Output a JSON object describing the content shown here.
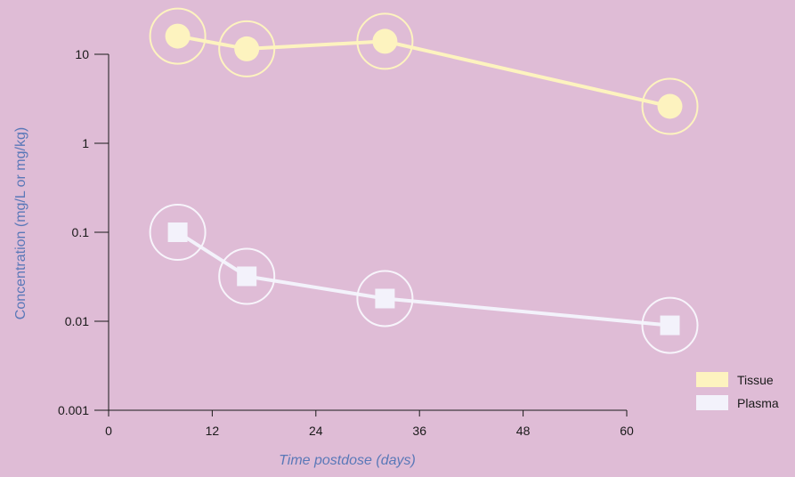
{
  "chart_data": {
    "type": "line",
    "xlabel": "Time postdose (days)",
    "ylabel": "Concentration (mg/L or mg/kg)",
    "x_ticks": [
      "0",
      "12",
      "24",
      "36",
      "48",
      "60"
    ],
    "y_ticks": [
      "0.001",
      "0.01",
      "0.1",
      "1",
      "10"
    ],
    "xlim": [
      0,
      66
    ],
    "ylim": [
      0.001,
      30
    ],
    "y_scale": "log",
    "grid": false,
    "legend_position": "bottom-right",
    "series": [
      {
        "name": "Tissue",
        "marker": "circle",
        "color": "#fdf3bf",
        "x": [
          8,
          16,
          32,
          65
        ],
        "y": [
          16,
          11.5,
          14,
          2.6
        ]
      },
      {
        "name": "Plasma",
        "marker": "square",
        "color": "#f3f2fb",
        "x": [
          8,
          16,
          32,
          65
        ],
        "y": [
          0.1,
          0.032,
          0.018,
          0.009
        ]
      }
    ],
    "colors": {
      "background": "#dfbcd6",
      "axis": "#1a1a1a",
      "axis_title": "#5a78b8",
      "halo_tissue": "#fdf3bf",
      "halo_plasma": "#f7f4fb"
    }
  }
}
